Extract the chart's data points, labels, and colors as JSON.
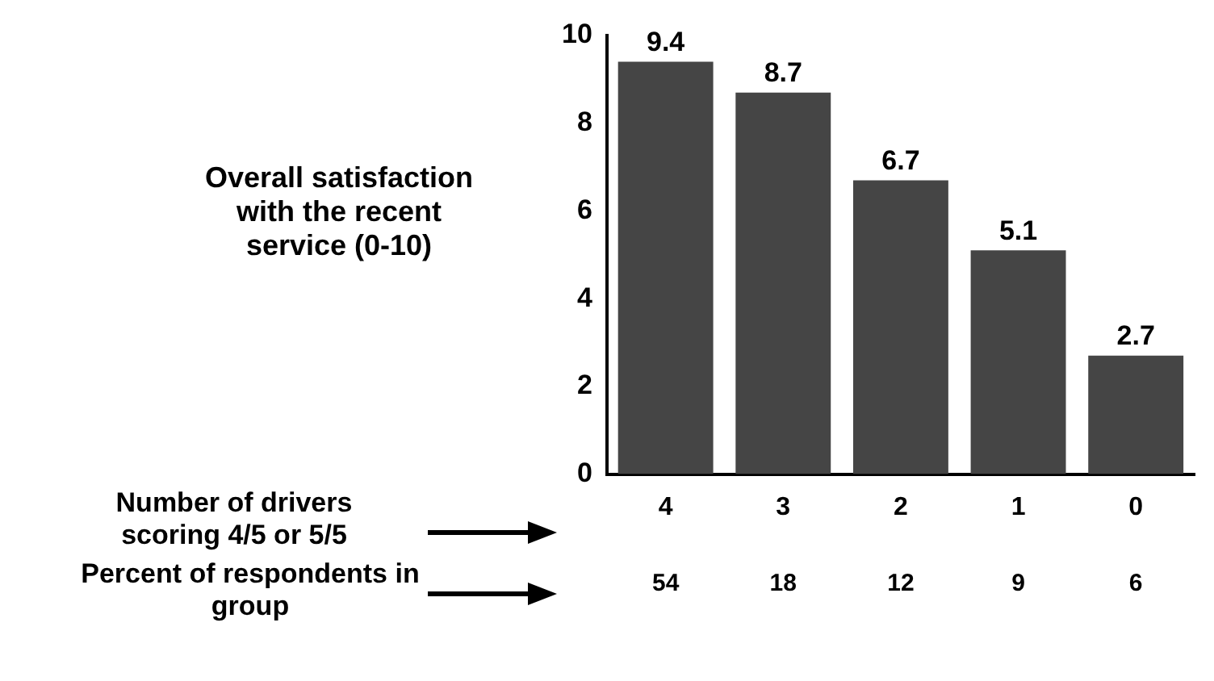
{
  "chart_data": {
    "type": "bar",
    "ylabel": "Overall satisfaction with the recent service (0-10)",
    "categories": [
      "4",
      "3",
      "2",
      "1",
      "0"
    ],
    "values": [
      9.4,
      8.7,
      6.7,
      5.1,
      2.7
    ],
    "color": "#454545",
    "ylim": [
      0,
      10
    ],
    "yticks": [
      0,
      2,
      4,
      6,
      8,
      10
    ],
    "data_labels": true,
    "annotations": [
      "Number of drivers scoring 4/5 or 5/5",
      "Percent of respondents in group",
      "54",
      "18",
      "12",
      "9",
      "6"
    ]
  }
}
